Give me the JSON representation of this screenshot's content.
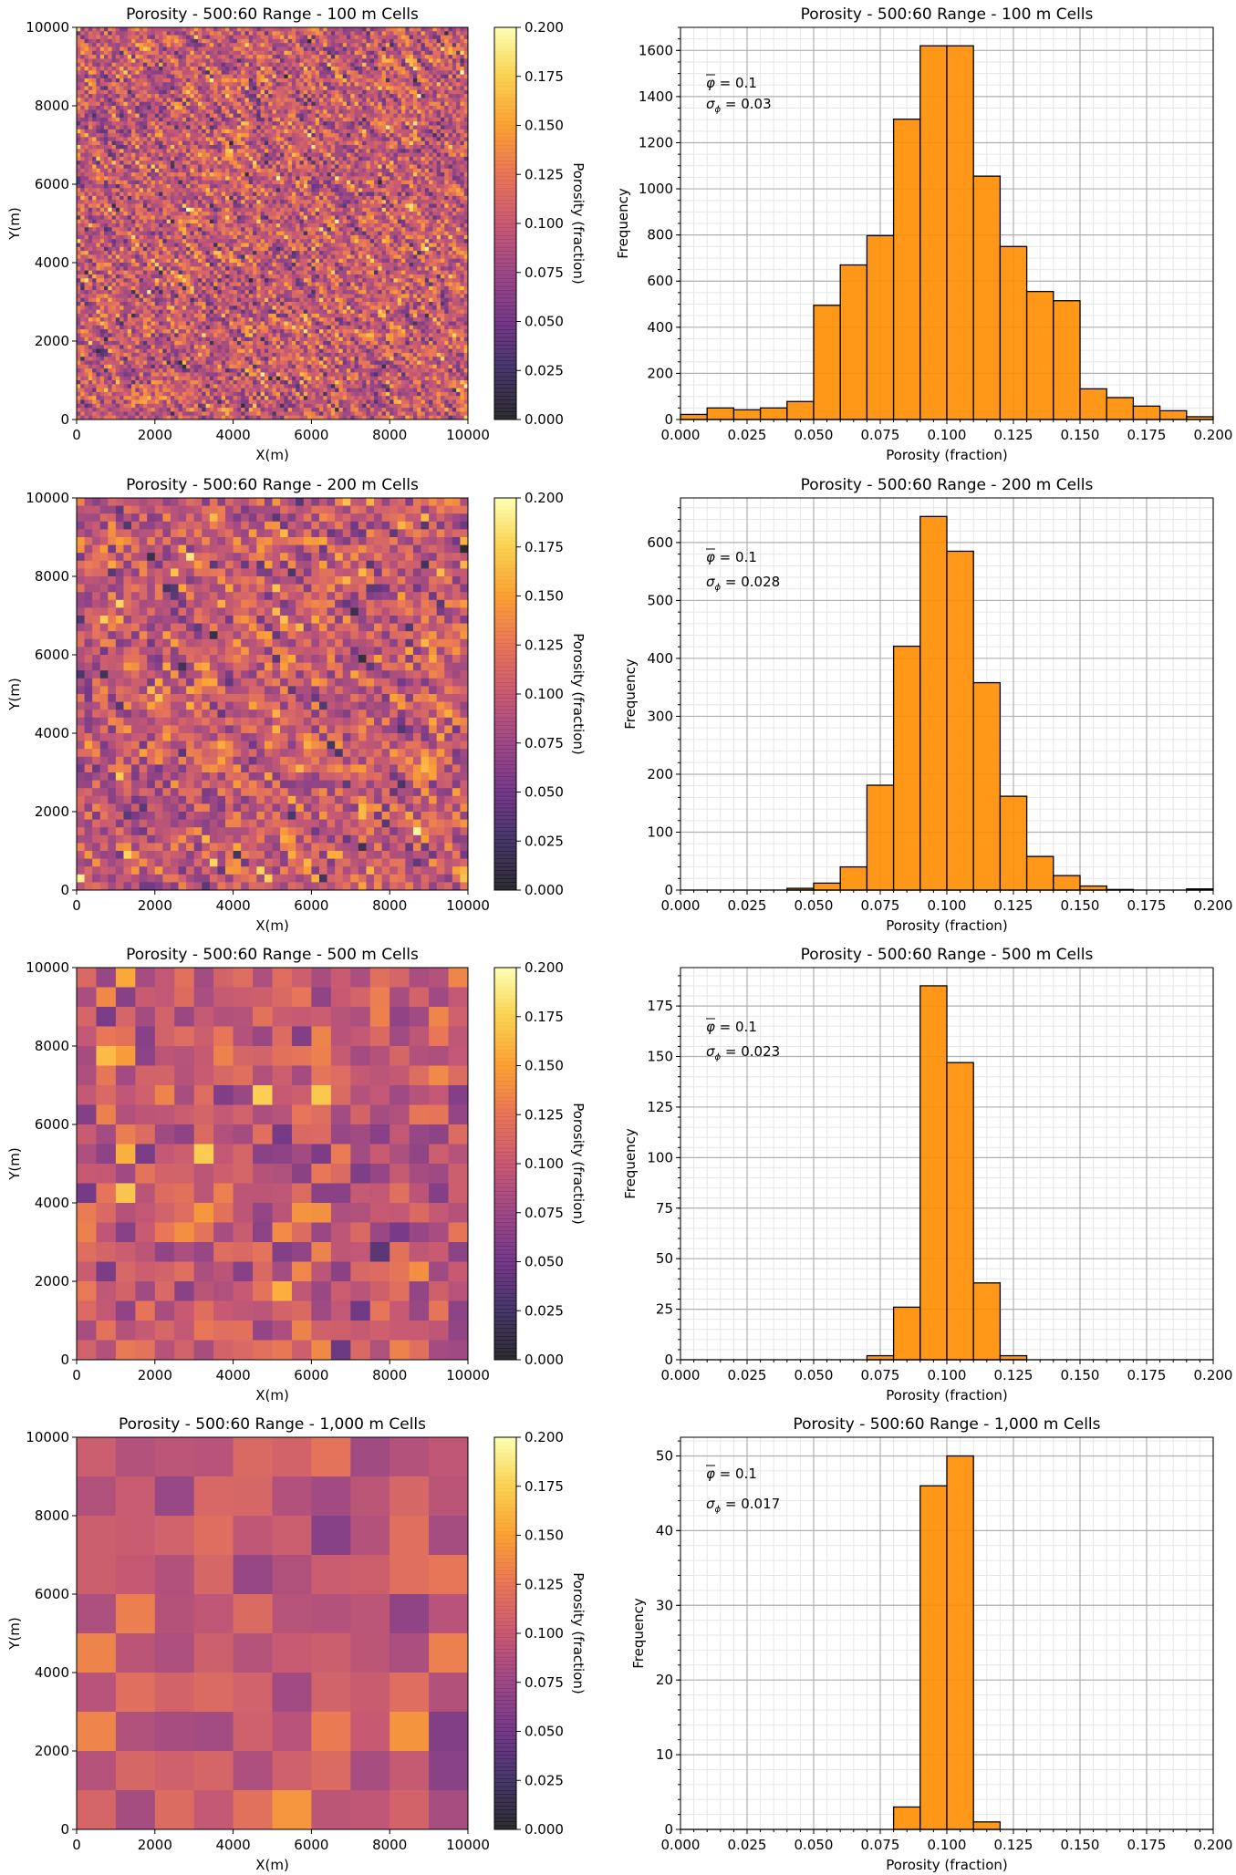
{
  "colors": {
    "bar_fill": "#ff8c00",
    "bar_edge": "#000000",
    "grid_major": "#b0b0b0",
    "grid_minor": "#e6e6e6",
    "colormap": "inferno"
  },
  "chart_data": [
    {
      "type": "heatmap",
      "title": "Porosity - 500:60 Range - 100 m Cells",
      "xlabel": "X(m)",
      "ylabel": "Y(m)",
      "xlim": [
        0,
        10000
      ],
      "ylim": [
        0,
        10000
      ],
      "cell_size_m": 100,
      "xticks": [
        "0",
        "2000",
        "4000",
        "6000",
        "8000",
        "10000"
      ],
      "yticks": [
        "0",
        "2000",
        "4000",
        "6000",
        "8000",
        "10000"
      ],
      "colorbar": {
        "label": "Porosity (fraction)",
        "range": [
          0,
          0.2
        ],
        "ticks": [
          "0.000",
          "0.025",
          "0.050",
          "0.075",
          "0.100",
          "0.125",
          "0.150",
          "0.175",
          "0.200"
        ]
      },
      "mean": 0.1,
      "std": 0.03
    },
    {
      "type": "bar",
      "title": "Porosity - 500:60 Range - 100 m Cells",
      "xlabel": "Porosity (fraction)",
      "ylabel": "Frequency",
      "xlim": [
        0,
        0.2
      ],
      "ylim": [
        0,
        1700
      ],
      "grid": true,
      "bin_start": 0,
      "bin_width": 0.01,
      "values": [
        22,
        50,
        42,
        50,
        78,
        495,
        670,
        797,
        1302,
        1620,
        1620,
        1055,
        750,
        555,
        515,
        133,
        95,
        58,
        38,
        12
      ],
      "xticks": [
        "0.000",
        "0.025",
        "0.050",
        "0.075",
        "0.100",
        "0.125",
        "0.150",
        "0.175",
        "0.200"
      ],
      "yticks": [
        "0",
        "200",
        "400",
        "600",
        "800",
        "1000",
        "1200",
        "1400",
        "1600"
      ],
      "ytick_step": 200,
      "mean_label": "0.1",
      "std_label": "0.03"
    },
    {
      "type": "heatmap",
      "title": "Porosity - 500:60 Range - 200 m Cells",
      "xlabel": "X(m)",
      "ylabel": "Y(m)",
      "xlim": [
        0,
        10000
      ],
      "ylim": [
        0,
        10000
      ],
      "cell_size_m": 200,
      "xticks": [
        "0",
        "2000",
        "4000",
        "6000",
        "8000",
        "10000"
      ],
      "yticks": [
        "0",
        "2000",
        "4000",
        "6000",
        "8000",
        "10000"
      ],
      "colorbar": {
        "label": "Porosity (fraction)",
        "range": [
          0,
          0.2
        ],
        "ticks": [
          "0.000",
          "0.025",
          "0.050",
          "0.075",
          "0.100",
          "0.125",
          "0.150",
          "0.175",
          "0.200"
        ]
      },
      "mean": 0.1,
      "std": 0.028
    },
    {
      "type": "bar",
      "title": "Porosity - 500:60 Range - 200 m Cells",
      "xlabel": "Porosity (fraction)",
      "ylabel": "Frequency",
      "xlim": [
        0,
        0.2
      ],
      "ylim": [
        0,
        677
      ],
      "grid": true,
      "bin_start": 0,
      "bin_width": 0.01,
      "values": [
        0,
        0,
        0,
        0,
        3,
        12,
        40,
        181,
        421,
        645,
        585,
        358,
        162,
        58,
        25,
        7,
        1,
        0,
        0,
        2
      ],
      "xticks": [
        "0.000",
        "0.025",
        "0.050",
        "0.075",
        "0.100",
        "0.125",
        "0.150",
        "0.175",
        "0.200"
      ],
      "yticks": [
        "0",
        "100",
        "200",
        "300",
        "400",
        "500",
        "600"
      ],
      "ytick_step": 100,
      "mean_label": "0.1",
      "std_label": "0.028"
    },
    {
      "type": "heatmap",
      "title": "Porosity - 500:60 Range - 500 m Cells",
      "xlabel": "X(m)",
      "ylabel": "Y(m)",
      "xlim": [
        0,
        10000
      ],
      "ylim": [
        0,
        10000
      ],
      "cell_size_m": 500,
      "xticks": [
        "0",
        "2000",
        "4000",
        "6000",
        "8000",
        "10000"
      ],
      "yticks": [
        "0",
        "2000",
        "4000",
        "6000",
        "8000",
        "10000"
      ],
      "colorbar": {
        "label": "Porosity (fraction)",
        "range": [
          0,
          0.2
        ],
        "ticks": [
          "0.000",
          "0.025",
          "0.050",
          "0.075",
          "0.100",
          "0.125",
          "0.150",
          "0.175",
          "0.200"
        ]
      },
      "mean": 0.1,
      "std": 0.023
    },
    {
      "type": "bar",
      "title": "Porosity - 500:60 Range - 500 m Cells",
      "xlabel": "Porosity (fraction)",
      "ylabel": "Frequency",
      "xlim": [
        0,
        0.2
      ],
      "ylim": [
        0,
        194
      ],
      "grid": true,
      "bin_start": 0,
      "bin_width": 0.01,
      "values": [
        0,
        0,
        0,
        0,
        0,
        0,
        0,
        2,
        26,
        185,
        147,
        38,
        2,
        0,
        0,
        0,
        0,
        0,
        0,
        0
      ],
      "xticks": [
        "0.000",
        "0.025",
        "0.050",
        "0.075",
        "0.100",
        "0.125",
        "0.150",
        "0.175",
        "0.200"
      ],
      "yticks": [
        "0",
        "25",
        "50",
        "75",
        "100",
        "125",
        "150",
        "175"
      ],
      "ytick_step": 25,
      "mean_label": "0.1",
      "std_label": "0.023"
    },
    {
      "type": "heatmap",
      "title": "Porosity - 500:60 Range - 1,000 m Cells",
      "xlabel": "X(m)",
      "ylabel": "Y(m)",
      "xlim": [
        0,
        10000
      ],
      "ylim": [
        0,
        10000
      ],
      "cell_size_m": 1000,
      "xticks": [
        "0",
        "2000",
        "4000",
        "6000",
        "8000",
        "10000"
      ],
      "yticks": [
        "0",
        "2000",
        "4000",
        "6000",
        "8000",
        "10000"
      ],
      "colorbar": {
        "label": "Porosity (fraction)",
        "range": [
          0,
          0.2
        ],
        "ticks": [
          "0.000",
          "0.025",
          "0.050",
          "0.075",
          "0.100",
          "0.125",
          "0.150",
          "0.175",
          "0.200"
        ]
      },
      "mean": 0.1,
      "std": 0.017
    },
    {
      "type": "bar",
      "title": "Porosity - 500:60 Range - 1,000 m Cells",
      "xlabel": "Porosity (fraction)",
      "ylabel": "Frequency",
      "xlim": [
        0,
        0.2
      ],
      "ylim": [
        0,
        52.5
      ],
      "grid": true,
      "bin_start": 0,
      "bin_width": 0.01,
      "values": [
        0,
        0,
        0,
        0,
        0,
        0,
        0,
        0,
        3,
        46,
        50,
        1,
        0,
        0,
        0,
        0,
        0,
        0,
        0,
        0
      ],
      "xticks": [
        "0.000",
        "0.025",
        "0.050",
        "0.075",
        "0.100",
        "0.125",
        "0.150",
        "0.175",
        "0.200"
      ],
      "yticks": [
        "0",
        "10",
        "20",
        "30",
        "40",
        "50"
      ],
      "ytick_step": 10,
      "mean_label": "0.1",
      "std_label": "0.017"
    }
  ]
}
